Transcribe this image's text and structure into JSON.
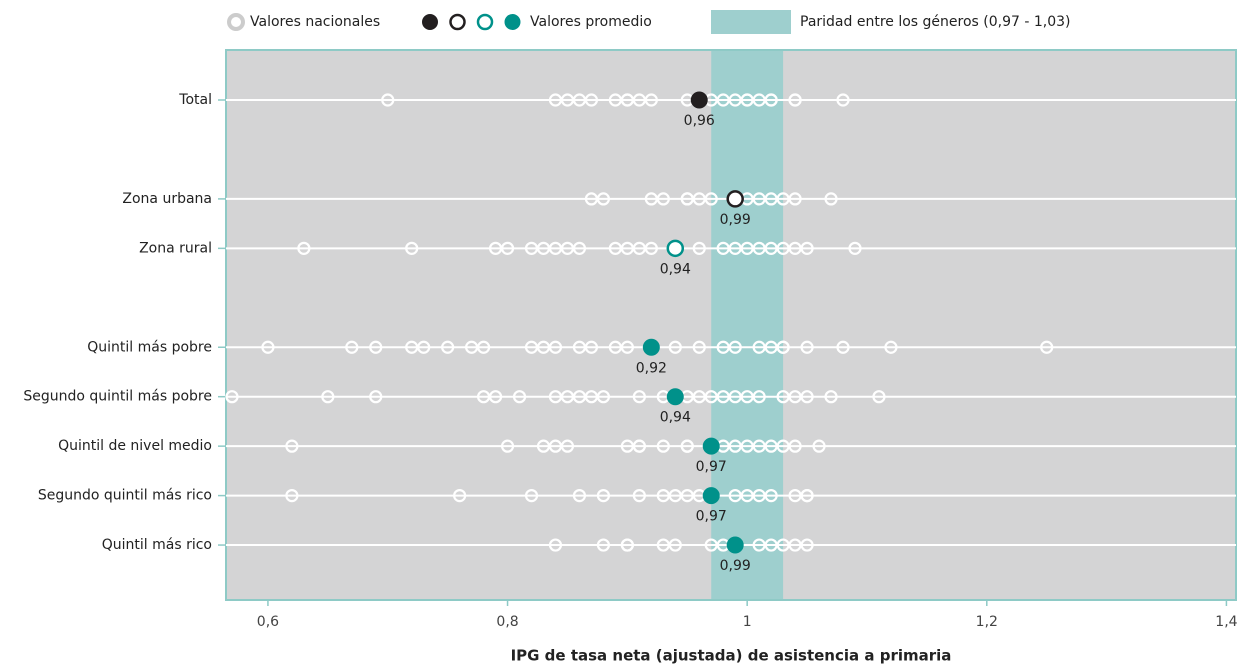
{
  "chart_data": {
    "type": "dotplot",
    "xlabel": "IPG de tasa neta (ajustada) de asistencia a primaria",
    "categories": [
      "Total",
      null,
      "Zona urbana",
      "Zona rural",
      null,
      "Quintil más pobre",
      "Segundo quintil más pobre",
      "Quintil de nivel medio",
      "Segundo quintil más rico",
      "Quintil más rico"
    ],
    "xlim": [
      0.565,
      1.408
    ],
    "xticks": [
      {
        "value": 0.6,
        "label": "0,6"
      },
      {
        "value": 0.8,
        "label": "0,8"
      },
      1,
      {
        "value": 1.2,
        "label": "1,2"
      },
      {
        "value": 1.4,
        "label": "1,4"
      }
    ],
    "parity": {
      "label": "Paridad entre los géneros (0,97 - 1,03)",
      "range": [
        0.97,
        1.03
      ],
      "color": "#9ecfce"
    },
    "series": [
      {
        "name": "Valores nacionales",
        "color": "#ffffff",
        "values": [
          [
            0.7,
            0.84,
            0.85,
            0.86,
            0.87,
            0.89,
            0.9,
            0.9,
            0.91,
            0.92,
            0.95,
            0.97,
            0.98,
            0.99,
            1.0,
            1.0,
            1.01,
            1.02,
            1.02,
            1.04,
            1.04,
            1.08
          ],
          null,
          [
            0.87,
            0.88,
            0.92,
            0.93,
            0.95,
            0.95,
            0.96,
            0.97,
            0.99,
            1.0,
            1.01,
            1.02,
            1.03,
            1.04,
            1.07
          ],
          [
            0.63,
            0.72,
            0.79,
            0.8,
            0.82,
            0.83,
            0.84,
            0.85,
            0.86,
            0.89,
            0.9,
            0.91,
            0.92,
            0.96,
            0.98,
            0.99,
            1.0,
            1.01,
            1.02,
            1.03,
            1.04,
            1.05,
            1.09
          ],
          null,
          [
            0.6,
            0.67,
            0.69,
            0.72,
            0.73,
            0.75,
            0.77,
            0.78,
            0.82,
            0.83,
            0.84,
            0.86,
            0.87,
            0.89,
            0.9,
            0.92,
            0.94,
            0.96,
            0.98,
            0.99,
            1.01,
            1.02,
            1.03,
            1.03,
            1.05,
            1.08,
            1.12,
            1.25
          ],
          [
            0.57,
            0.65,
            0.69,
            0.78,
            0.79,
            0.81,
            0.84,
            0.85,
            0.86,
            0.87,
            0.88,
            0.91,
            0.93,
            0.95,
            0.96,
            0.97,
            0.98,
            0.99,
            1.0,
            1.01,
            1.03,
            1.04,
            1.05,
            1.07,
            1.11
          ],
          [
            0.62,
            0.8,
            0.83,
            0.84,
            0.85,
            0.9,
            0.91,
            0.91,
            0.93,
            0.95,
            0.95,
            0.98,
            0.99,
            1.0,
            1.01,
            1.02,
            1.03,
            1.04,
            1.06
          ],
          [
            0.62,
            0.76,
            0.82,
            0.86,
            0.88,
            0.91,
            0.93,
            0.94,
            0.95,
            0.96,
            0.99,
            1.0,
            1.01,
            1.02,
            1.04,
            1.05,
            1.05
          ],
          [
            0.84,
            0.88,
            0.9,
            0.9,
            0.93,
            0.94,
            0.97,
            0.98,
            0.99,
            1.01,
            1.02,
            1.03,
            1.04,
            1.05
          ]
        ]
      },
      {
        "name": "Valores promedio",
        "values": [
          0.96,
          null,
          0.99,
          0.94,
          null,
          0.92,
          0.94,
          0.97,
          0.97,
          0.99
        ],
        "value_labels": [
          "0,96",
          null,
          "0,99",
          "0,94",
          null,
          "0,92",
          "0,94",
          "0,97",
          "0,97",
          "0,99"
        ],
        "colors": [
          "#231f20",
          null,
          "#231f20",
          "#00918a",
          null,
          "#00918a",
          "#00918a",
          "#00918a",
          "#00918a",
          "#00918a"
        ],
        "filled": [
          true,
          null,
          false,
          false,
          null,
          true,
          true,
          true,
          true,
          true
        ]
      }
    ],
    "background": "#d4d4d5",
    "frame_color": "#8ecac6"
  }
}
